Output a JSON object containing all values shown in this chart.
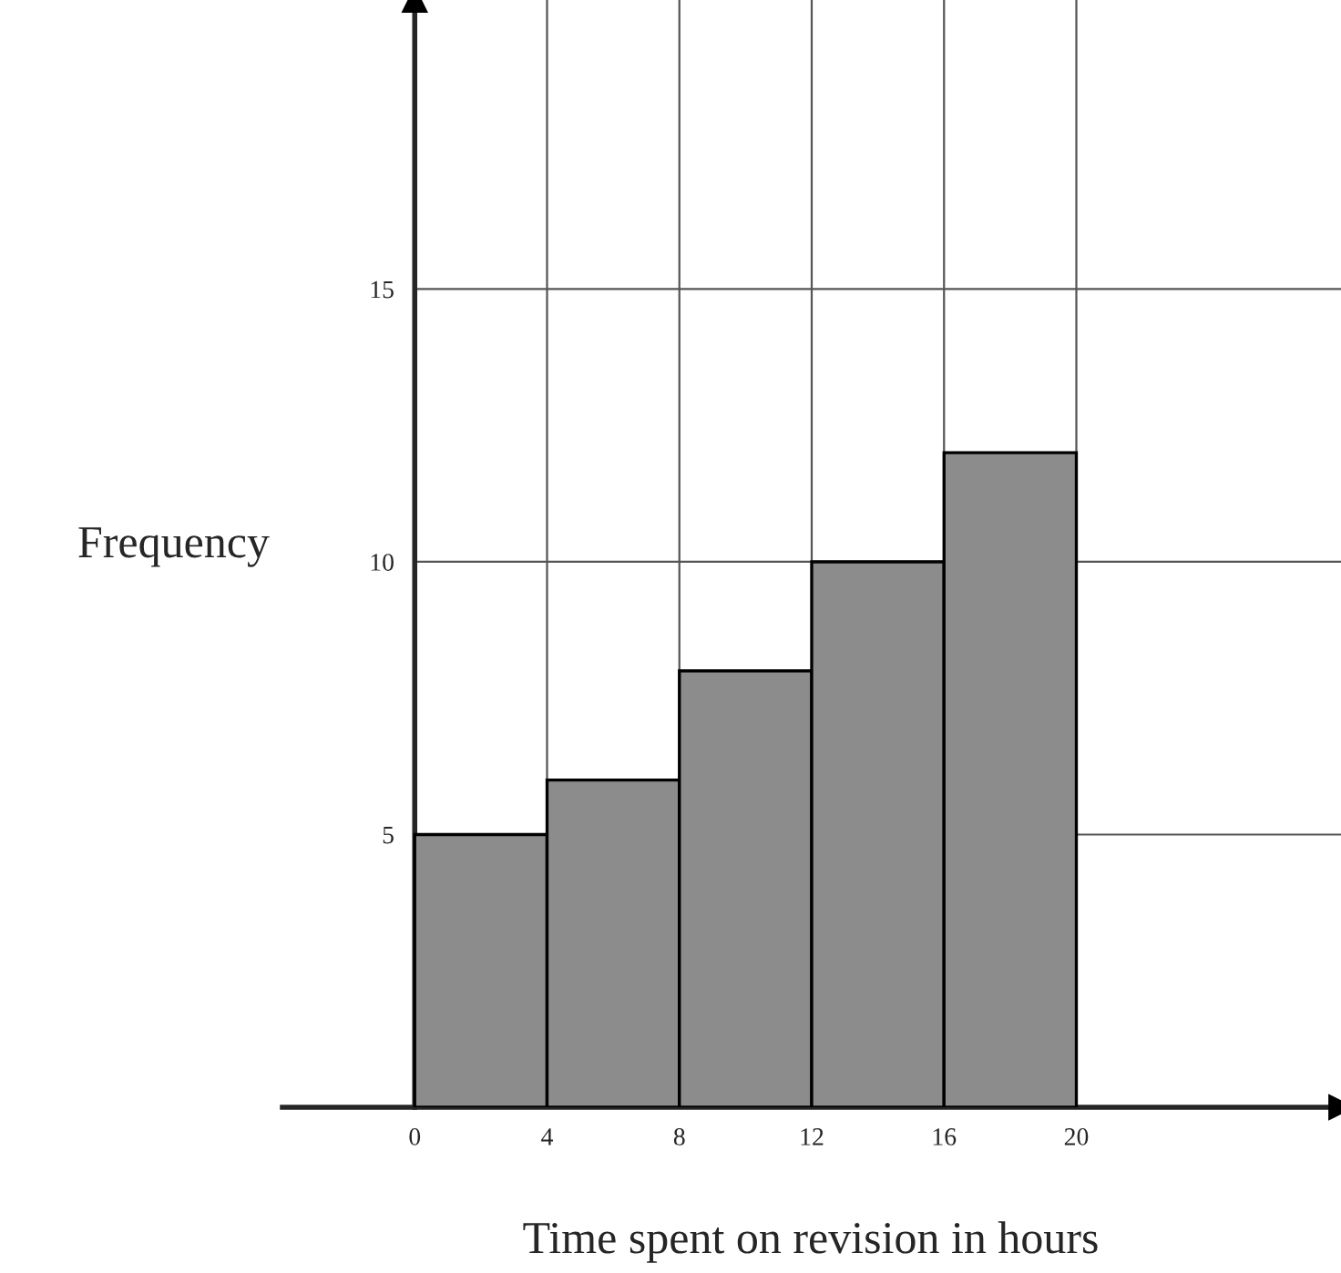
{
  "chart_data": {
    "type": "histogram",
    "xlabel": "Time spent on revision in hours",
    "ylabel": "Frequency",
    "bins": [
      0,
      4,
      8,
      12,
      16,
      20
    ],
    "values": [
      5,
      6,
      8,
      10,
      12
    ],
    "color": "#8c8c8c",
    "xlim": [
      -4,
      28
    ],
    "ylim": [
      0,
      20.3
    ],
    "xticks": [
      0,
      4,
      8,
      12,
      16,
      20
    ],
    "yticks": [
      5,
      10,
      15
    ],
    "grid": true
  }
}
